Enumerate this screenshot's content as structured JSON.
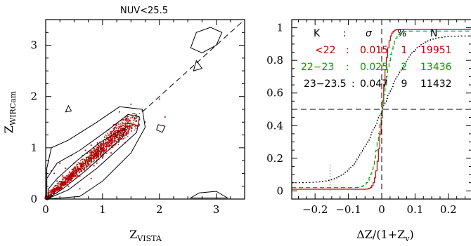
{
  "chart_data": [
    {
      "type": "scatter",
      "title": "NUV<25.5",
      "xlabel": "Z",
      "xlabel_sub": "VISTA",
      "ylabel": "Z",
      "ylabel_sub": "WIRCam",
      "xlim": [
        0,
        3.5
      ],
      "ylim": [
        0,
        3.5
      ],
      "xticks": [
        "0",
        "1",
        "2",
        "3"
      ],
      "yticks": [
        "0",
        "1",
        "2",
        "3"
      ],
      "one_to_one_line": true,
      "point_color": "#b00000",
      "contour_color": "#000000",
      "series": [
        {
          "points": [
            [
              0.05,
              0.04
            ],
            [
              0.1,
              0.09
            ],
            [
              0.12,
              0.14
            ],
            [
              0.15,
              0.13
            ],
            [
              0.18,
              0.2
            ],
            [
              0.2,
              0.18
            ],
            [
              0.22,
              0.25
            ],
            [
              0.25,
              0.22
            ],
            [
              0.28,
              0.3
            ],
            [
              0.3,
              0.27
            ],
            [
              0.32,
              0.33
            ],
            [
              0.35,
              0.34
            ],
            [
              0.37,
              0.39
            ],
            [
              0.4,
              0.38
            ],
            [
              0.42,
              0.44
            ],
            [
              0.45,
              0.43
            ],
            [
              0.47,
              0.5
            ],
            [
              0.5,
              0.47
            ],
            [
              0.52,
              0.55
            ],
            [
              0.55,
              0.53
            ],
            [
              0.57,
              0.6
            ],
            [
              0.6,
              0.58
            ],
            [
              0.62,
              0.64
            ],
            [
              0.65,
              0.63
            ],
            [
              0.67,
              0.7
            ],
            [
              0.7,
              0.68
            ],
            [
              0.72,
              0.75
            ],
            [
              0.75,
              0.73
            ],
            [
              0.77,
              0.8
            ],
            [
              0.8,
              0.78
            ],
            [
              0.82,
              0.85
            ],
            [
              0.85,
              0.83
            ],
            [
              0.87,
              0.9
            ],
            [
              0.9,
              0.88
            ],
            [
              0.92,
              0.95
            ],
            [
              0.95,
              0.93
            ],
            [
              0.97,
              1.0
            ],
            [
              1.0,
              0.98
            ],
            [
              1.02,
              1.05
            ],
            [
              1.05,
              1.03
            ],
            [
              1.08,
              1.1
            ],
            [
              1.1,
              1.08
            ],
            [
              1.12,
              1.15
            ],
            [
              1.15,
              1.13
            ],
            [
              1.2,
              1.22
            ],
            [
              1.25,
              1.22
            ],
            [
              1.3,
              1.32
            ],
            [
              1.35,
              1.33
            ],
            [
              1.4,
              1.42
            ],
            [
              1.5,
              1.48
            ],
            [
              0.3,
              0.45
            ],
            [
              0.5,
              0.7
            ],
            [
              0.8,
              1.05
            ],
            [
              0.6,
              0.45
            ],
            [
              1.0,
              0.8
            ],
            [
              0.2,
              0.35
            ],
            [
              1.1,
              1.35
            ],
            [
              0.7,
              0.95
            ],
            [
              0.4,
              0.25
            ],
            [
              0.9,
              0.7
            ],
            [
              1.2,
              1.45
            ],
            [
              1.6,
              1.58
            ],
            [
              1.7,
              1.72
            ],
            [
              2.0,
              1.95
            ],
            [
              0.15,
              0.5
            ],
            [
              0.25,
              0.7
            ],
            [
              0.1,
              0.55
            ],
            [
              0.05,
              0.75
            ],
            [
              1.3,
              1.7
            ],
            [
              1.5,
              1.85
            ],
            [
              1.75,
              1.5
            ],
            [
              2.1,
              1.6
            ],
            [
              0.6,
              0.2
            ],
            [
              0.8,
              0.4
            ],
            [
              1.4,
              1.1
            ],
            [
              0.45,
              0.85
            ],
            [
              0.35,
              0.6
            ],
            [
              1.15,
              0.9
            ],
            [
              0.65,
              0.85
            ],
            [
              0.85,
              0.65
            ]
          ]
        }
      ]
    },
    {
      "type": "line",
      "xlabel": "ΔZ/(1+Z",
      "xlabel_sub": "v",
      "xlabel_end": ")",
      "xlim": [
        -0.27,
        0.27
      ],
      "ylim": [
        -0.05,
        1.05
      ],
      "xticks": [
        "−0.2",
        "−0.1",
        "0",
        "0.1",
        "0.2"
      ],
      "yticks": [
        "0",
        "0.2",
        "0.4",
        "0.6",
        "0.8",
        "1"
      ],
      "header": {
        "k": "K",
        "colon": ":",
        "sigma": "σ",
        "pct": "%",
        "n": "N"
      },
      "rows": [
        {
          "k": "<22",
          "sep": ":",
          "sigma": "0.015",
          "pct": "1",
          "n": "19951",
          "color": "#c00000"
        },
        {
          "k": "22−23",
          "sep": ":",
          "sigma": "0.025",
          "pct": "2",
          "n": "13436",
          "color": "#00a000"
        },
        {
          "k": "23−23.5",
          "sep": ":",
          "sigma": "0.047",
          "pct": "9",
          "n": "11432",
          "color": "#000000"
        }
      ],
      "series": [
        {
          "sigma": 0.015,
          "floor": 0.01,
          "color": "#c00000",
          "dash": ""
        },
        {
          "sigma": 0.025,
          "floor": 0.02,
          "color": "#00a000",
          "dash": "6,4"
        },
        {
          "sigma": 0.047,
          "floor": 0.05,
          "color": "#000000",
          "dash": "2,3"
        }
      ],
      "reference_lines": {
        "vertical_x": 0,
        "horizontal_y": 0.5,
        "dotted_x": -0.155
      }
    }
  ]
}
